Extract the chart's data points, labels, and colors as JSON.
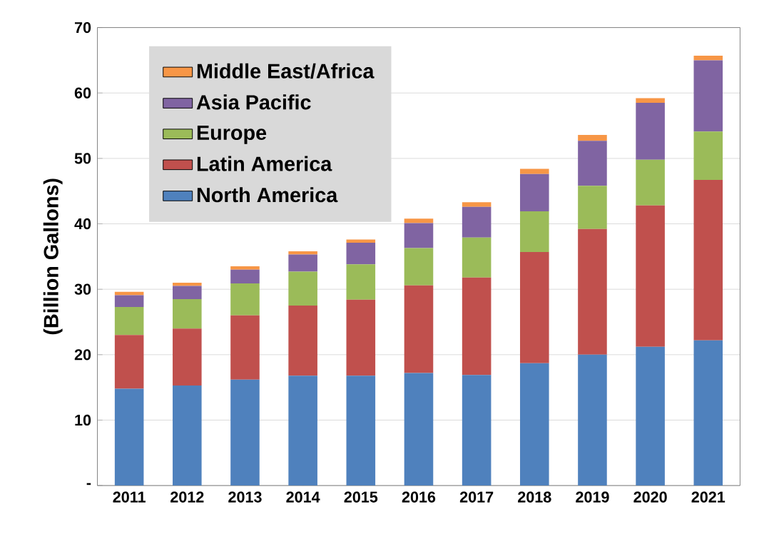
{
  "chart_data": {
    "type": "bar",
    "stacked": true,
    "ylabel": "(Billion Gallons)",
    "categories": [
      "2011",
      "2012",
      "2013",
      "2014",
      "2015",
      "2016",
      "2017",
      "2018",
      "2019",
      "2020",
      "2021"
    ],
    "series": [
      {
        "name": "North America",
        "color": "#4f81bd",
        "values": [
          14.8,
          15.3,
          16.2,
          16.8,
          16.8,
          17.2,
          16.9,
          18.7,
          20.0,
          21.2,
          22.2
        ]
      },
      {
        "name": "Latin America",
        "color": "#c0504d",
        "values": [
          8.2,
          8.7,
          9.8,
          10.7,
          11.6,
          13.4,
          14.9,
          17.0,
          19.2,
          21.6,
          24.5
        ]
      },
      {
        "name": "Europe",
        "color": "#9bbb59",
        "values": [
          4.3,
          4.5,
          4.9,
          5.2,
          5.4,
          5.7,
          6.1,
          6.2,
          6.6,
          7.0,
          7.4
        ]
      },
      {
        "name": "Asia Pacific",
        "color": "#8064a2",
        "values": [
          1.8,
          2.0,
          2.1,
          2.6,
          3.3,
          3.8,
          4.7,
          5.7,
          6.9,
          8.7,
          10.9
        ]
      },
      {
        "name": "Middle East/Africa",
        "color": "#f79646",
        "values": [
          0.5,
          0.5,
          0.5,
          0.5,
          0.5,
          0.7,
          0.7,
          0.8,
          0.9,
          0.7,
          0.7
        ]
      }
    ],
    "ylim": [
      0,
      70
    ],
    "yticks": [
      {
        "value": 0,
        "label": "-"
      },
      10,
      20,
      30,
      40,
      50,
      60,
      70
    ],
    "grid": "y",
    "legend": "top left"
  }
}
